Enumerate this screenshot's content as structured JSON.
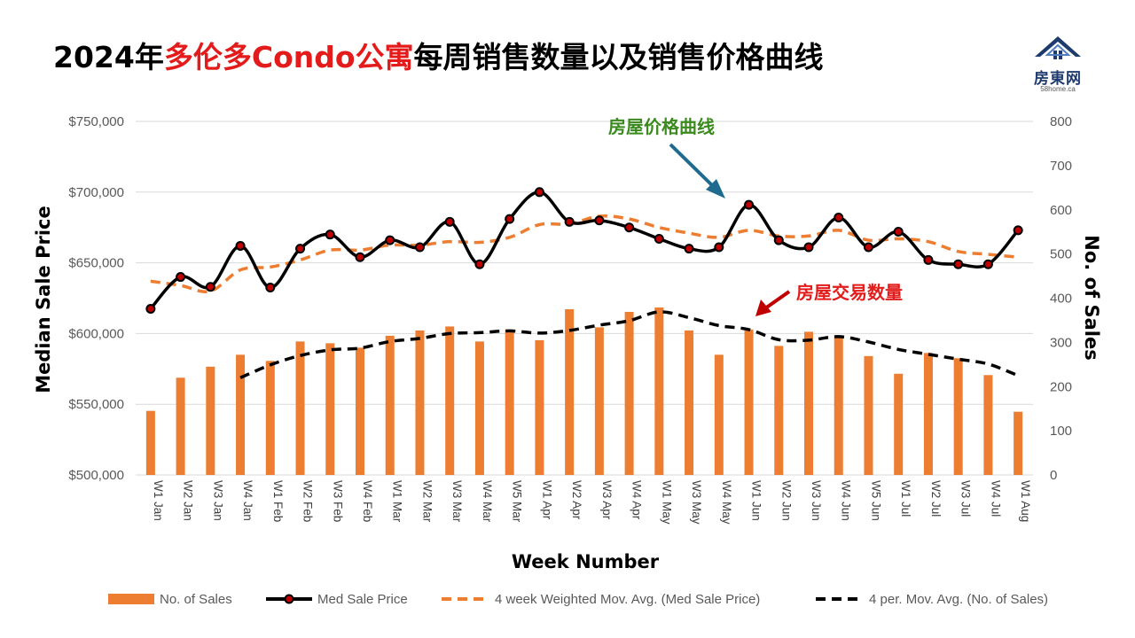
{
  "header": {
    "title_part1": "2024年",
    "title_highlight": "多伦多Condo公寓",
    "title_part2": "每周销售数量以及销售价格曲线"
  },
  "logo": {
    "name": "房東网",
    "site": "58home.ca"
  },
  "colors": {
    "bars": "#ed7d31",
    "price_line": "#000000",
    "marker_fill": "#c00000",
    "price_ma": "#ed7d31",
    "sales_ma": "#000000",
    "grid": "#d9d9d9",
    "annotation_green": "#3a8a1e",
    "annotation_red": "#e31b1b",
    "arrow_blue": "#1f6b8f",
    "arrow_red": "#c00000"
  },
  "chart_data": {
    "type": "bar",
    "xlabel": "Week Number",
    "ylabel": "Median Sale Price",
    "y2label": "No. of Sales",
    "ylim": [
      500000,
      750000
    ],
    "y2lim": [
      0,
      800
    ],
    "yticks": [
      "$500,000",
      "$550,000",
      "$600,000",
      "$650,000",
      "$700,000",
      "$750,000"
    ],
    "y2ticks": [
      "0",
      "100",
      "200",
      "300",
      "400",
      "500",
      "600",
      "700",
      "800"
    ],
    "grid": true,
    "legend_position": "bottom",
    "categories": [
      "W1 Jan",
      "W2 Jan",
      "W3 Jan",
      "W4 Jan",
      "W1 Feb",
      "W2 Feb",
      "W3 Feb",
      "W4 Feb",
      "W1 Mar",
      "W2 Mar",
      "W3 Mar",
      "W4 Mar",
      "W5 Mar",
      "W1 Apr",
      "W2 Apr",
      "W3 Apr",
      "W4 Apr",
      "W1 May",
      "W3 May",
      "W4 May",
      "W1 Jun",
      "W2 Jun",
      "W3 Jun",
      "W4 Jun",
      "W5 Jun",
      "W1 Jul",
      "W2 Jul",
      "W3 Jul",
      "W4 Jul",
      "W1 Aug"
    ],
    "series": [
      {
        "name": "No. of Sales",
        "type": "bar",
        "axis": "right",
        "values": [
          145,
          220,
          245,
          272,
          258,
          302,
          298,
          288,
          315,
          327,
          336,
          302,
          329,
          305,
          375,
          334,
          369,
          379,
          327,
          272,
          329,
          292,
          324,
          313,
          269,
          229,
          276,
          264,
          226,
          143
        ]
      },
      {
        "name": "Med Sale Price",
        "type": "line-marker",
        "axis": "left",
        "values": [
          617500,
          640000,
          633000,
          662000,
          632500,
          660000,
          670000,
          654000,
          666000,
          661000,
          679000,
          649000,
          681000,
          700000,
          679000,
          680000,
          675000,
          667000,
          660000,
          661000,
          691000,
          666000,
          661000,
          682000,
          661000,
          672000,
          652000,
          649000,
          649000,
          673000
        ]
      },
      {
        "name": "4 week Weighted Mov. Avg. (Med Sale Price)",
        "type": "dashed-line",
        "axis": "left",
        "values": [
          637000,
          634000,
          630000,
          645000,
          647000,
          652000,
          659000,
          659000,
          662500,
          662500,
          665000,
          664500,
          668000,
          677000,
          677500,
          683000,
          681000,
          675000,
          671000,
          668000,
          673000,
          669000,
          669000,
          673000,
          666000,
          667000,
          665000,
          658000,
          656000,
          654000
        ]
      },
      {
        "name": "4 per. Mov. Avg. (No. of Sales)",
        "type": "dashed-line",
        "axis": "right",
        "start_index": 3,
        "values": [
          null,
          null,
          null,
          220,
          249,
          270,
          283,
          287,
          302,
          309,
          320,
          322,
          326,
          321,
          327,
          339,
          349,
          369,
          356,
          338,
          329,
          306,
          305,
          313,
          301,
          284,
          273,
          262,
          251,
          225
        ]
      }
    ],
    "annotations": [
      {
        "text": "房屋价格曲线"
      },
      {
        "text": "房屋交易数量"
      }
    ]
  }
}
